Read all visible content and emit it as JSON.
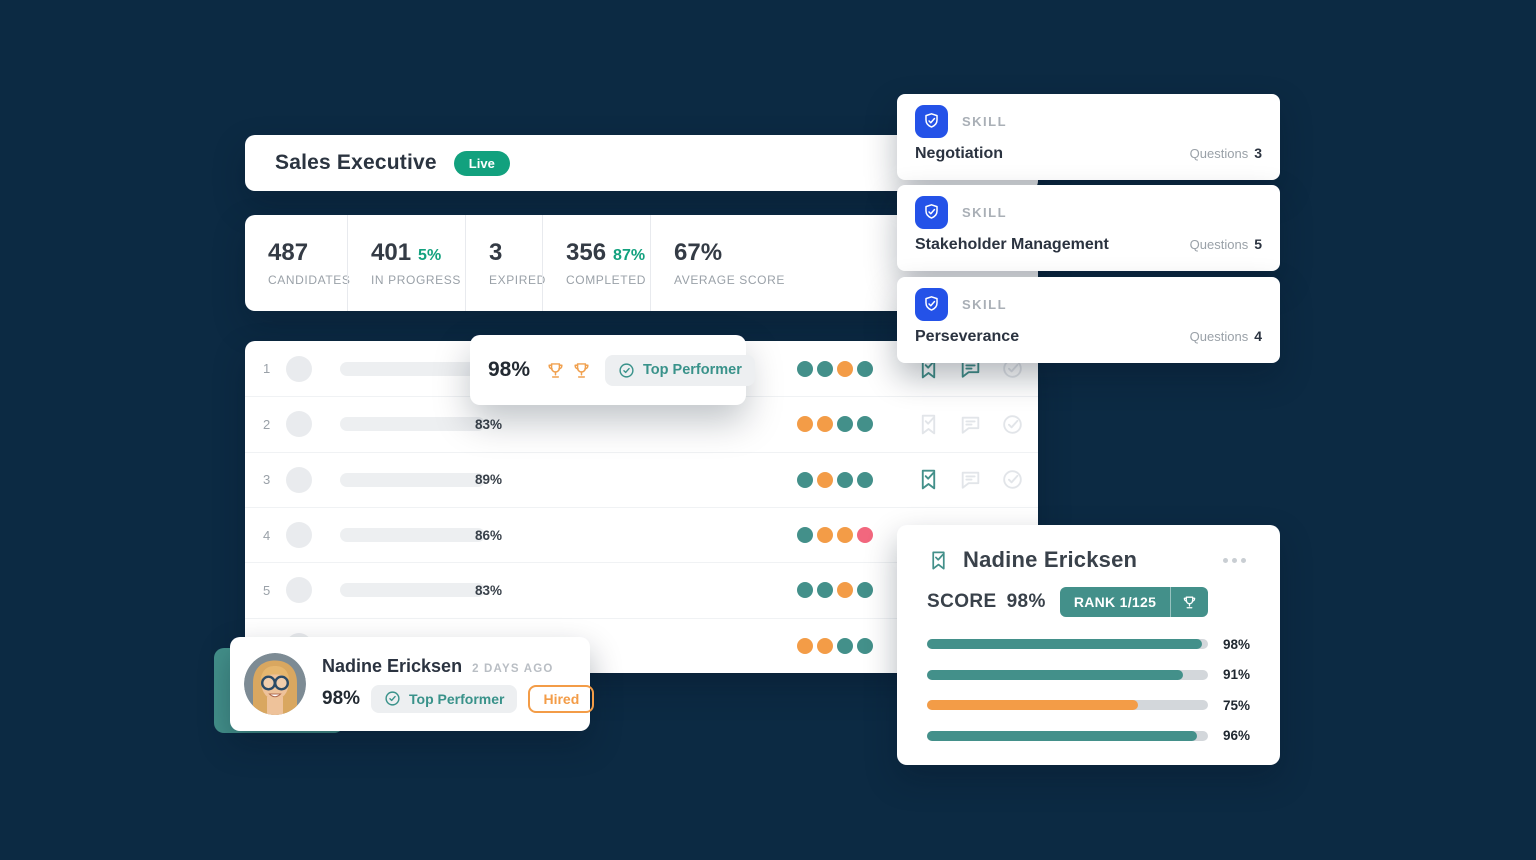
{
  "header": {
    "title": "Sales Executive",
    "badge": "Live"
  },
  "stats": [
    {
      "value": "487",
      "accent": "",
      "label": "CANDIDATES"
    },
    {
      "value": "401",
      "accent": "5%",
      "label": "IN PROGRESS"
    },
    {
      "value": "3",
      "accent": "",
      "label": "EXPIRED"
    },
    {
      "value": "356",
      "accent": "87%",
      "label": "COMPLETED"
    },
    {
      "value": "67%",
      "accent": "",
      "label": "AVERAGE SCORE"
    }
  ],
  "leaderboard": {
    "rows": [
      {
        "rank": "1",
        "pct": "",
        "dots": [
          "teal",
          "teal",
          "orange",
          "teal"
        ],
        "icons": [
          "on",
          "on",
          "off"
        ]
      },
      {
        "rank": "2",
        "pct": "83%",
        "dots": [
          "orange",
          "orange",
          "teal",
          "teal"
        ],
        "icons": [
          "off",
          "off",
          "off"
        ]
      },
      {
        "rank": "3",
        "pct": "89%",
        "dots": [
          "teal",
          "orange",
          "teal",
          "teal"
        ],
        "icons": [
          "on",
          "off",
          "off"
        ]
      },
      {
        "rank": "4",
        "pct": "86%",
        "dots": [
          "teal",
          "orange",
          "orange",
          "pink"
        ],
        "icons": [
          "off",
          "off",
          "off"
        ]
      },
      {
        "rank": "5",
        "pct": "83%",
        "dots": [
          "teal",
          "teal",
          "orange",
          "teal"
        ],
        "icons": [
          "off",
          "off",
          "off"
        ]
      },
      {
        "rank": "",
        "pct": "",
        "dots": [
          "orange",
          "orange",
          "teal",
          "teal"
        ],
        "icons": [
          "off",
          "off",
          "off"
        ]
      }
    ]
  },
  "popup": {
    "score": "98%",
    "badge": "Top Performer"
  },
  "skills": {
    "tag": "SKILL",
    "questions_label": "Questions",
    "items": [
      {
        "name": "Negotiation",
        "count": "3"
      },
      {
        "name": "Stakeholder Management",
        "count": "5"
      },
      {
        "name": "Perseverance",
        "count": "4"
      }
    ]
  },
  "score_card": {
    "name": "Nadine Ericksen",
    "score_label": "SCORE",
    "score_value": "98%",
    "rank_badge": "RANK 1/125",
    "bars": [
      {
        "pct": "98%",
        "color": "teal"
      },
      {
        "pct": "91%",
        "color": "teal"
      },
      {
        "pct": "75%",
        "color": "orange"
      },
      {
        "pct": "96%",
        "color": "teal"
      }
    ]
  },
  "candidate_card": {
    "name": "Nadine Ericksen",
    "time": "2 DAYS AGO",
    "score": "98%",
    "badge": "Top Performer",
    "hired_label": "Hired"
  },
  "colors": {
    "background": "#0c2a43",
    "green": "#12a17e",
    "teal": "#43908a",
    "orange": "#f39c47",
    "pink": "#f2677e",
    "blue": "#2452e8"
  }
}
